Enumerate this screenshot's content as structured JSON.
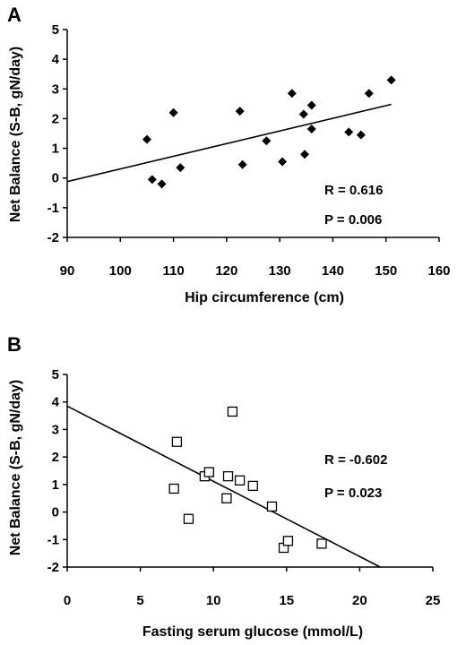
{
  "chart_data": [
    {
      "type": "scatter",
      "panel": "A",
      "xlabel": "Hip circumference (cm)",
      "ylabel": "Net Balance (S-B, gN/day)",
      "xlim": [
        90,
        160
      ],
      "ylim": [
        -2,
        5
      ],
      "xticks": [
        "90",
        "100",
        "110",
        "120",
        "130",
        "140",
        "150",
        "160"
      ],
      "yticks": [
        "-2",
        "-1",
        "0",
        "1",
        "2",
        "3",
        "4",
        "5"
      ],
      "marker": "filled-diamond",
      "points": [
        {
          "x": 105,
          "y": 1.3
        },
        {
          "x": 106,
          "y": -0.05
        },
        {
          "x": 107.8,
          "y": -0.2
        },
        {
          "x": 110,
          "y": 2.2
        },
        {
          "x": 111.3,
          "y": 0.35
        },
        {
          "x": 122.5,
          "y": 2.25
        },
        {
          "x": 123,
          "y": 0.45
        },
        {
          "x": 127.5,
          "y": 1.25
        },
        {
          "x": 130.5,
          "y": 0.55
        },
        {
          "x": 132.3,
          "y": 2.85
        },
        {
          "x": 134.5,
          "y": 2.15
        },
        {
          "x": 134.7,
          "y": 0.8
        },
        {
          "x": 136,
          "y": 2.45
        },
        {
          "x": 136,
          "y": 1.65
        },
        {
          "x": 143,
          "y": 1.55
        },
        {
          "x": 145.3,
          "y": 1.45
        },
        {
          "x": 146.8,
          "y": 2.85
        },
        {
          "x": 151,
          "y": 3.3
        }
      ],
      "trendline": {
        "x": [
          90,
          151
        ],
        "y": [
          -0.12,
          2.48
        ]
      },
      "grid": false,
      "annotations": [
        "R = 0.616",
        "P = 0.006"
      ]
    },
    {
      "type": "scatter",
      "panel": "B",
      "xlabel": "Fasting serum glucose (mmol/L)",
      "ylabel": "Net Balance (S-B, gN/day)",
      "xlim": [
        0,
        25
      ],
      "ylim": [
        -2,
        5
      ],
      "xticks": [
        "0",
        "5",
        "10",
        "15",
        "20",
        "25"
      ],
      "yticks": [
        "-2",
        "-1",
        "0",
        "1",
        "2",
        "3",
        "4",
        "5"
      ],
      "marker": "open-square",
      "points": [
        {
          "x": 7.3,
          "y": 0.85
        },
        {
          "x": 7.5,
          "y": 2.55
        },
        {
          "x": 8.3,
          "y": -0.25
        },
        {
          "x": 9.4,
          "y": 1.3
        },
        {
          "x": 9.7,
          "y": 1.45
        },
        {
          "x": 10.9,
          "y": 0.5
        },
        {
          "x": 11.0,
          "y": 1.3
        },
        {
          "x": 11.3,
          "y": 3.65
        },
        {
          "x": 11.8,
          "y": 1.15
        },
        {
          "x": 12.7,
          "y": 0.95
        },
        {
          "x": 14.0,
          "y": 0.2
        },
        {
          "x": 14.8,
          "y": -1.3
        },
        {
          "x": 15.1,
          "y": -1.05
        },
        {
          "x": 17.4,
          "y": -1.15
        }
      ],
      "trendline": {
        "x": [
          0,
          21.4
        ],
        "y": [
          3.85,
          -2
        ]
      },
      "grid": false,
      "annotations": [
        "R = -0.602",
        "P = 0.023"
      ]
    }
  ]
}
